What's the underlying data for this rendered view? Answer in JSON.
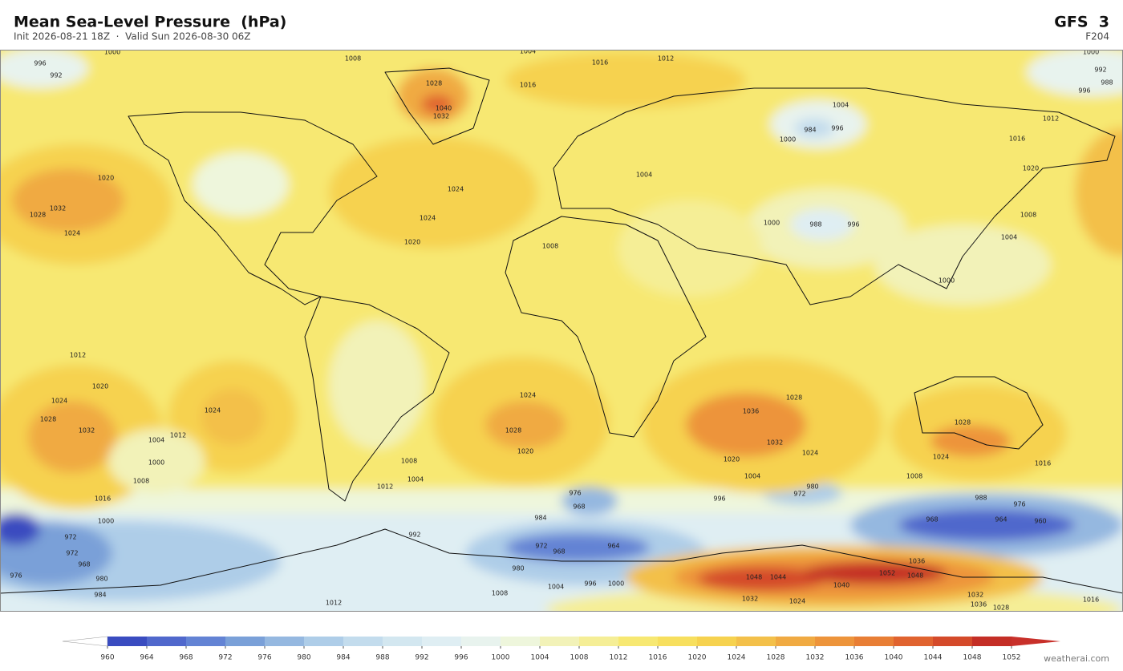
{
  "header": {
    "title": "Mean Sea-Level Pressure  (hPa)",
    "subtitle": "Init 2026-08-21 18Z  ·  Valid Sun 2026-08-30 06Z",
    "model": "GFS  3",
    "forecast_hour": "F204"
  },
  "colorbar": {
    "levels": [
      960,
      964,
      968,
      972,
      976,
      980,
      984,
      988,
      992,
      996,
      1000,
      1004,
      1008,
      1012,
      1016,
      1020,
      1024,
      1028,
      1032,
      1036,
      1040,
      1044,
      1048,
      1052
    ],
    "colors": [
      "#3a4cc0",
      "#5068cc",
      "#6383d4",
      "#7aa0d8",
      "#95b8e0",
      "#aecde8",
      "#c3dced",
      "#d3e7f0",
      "#dfeef3",
      "#e8f3ee",
      "#eef6dc",
      "#f2f2b8",
      "#f5ee96",
      "#f7e872",
      "#f7df5e",
      "#f6d24f",
      "#f3c04a",
      "#f0aa42",
      "#ed943b",
      "#e87e35",
      "#e0632f",
      "#d44a2a",
      "#c42e26"
    ],
    "under_color": "#ffffff",
    "over_color": "#c8302a"
  },
  "contour_labels": [
    1032,
    1024,
    1028,
    1020,
    1040,
    1032,
    1028,
    1024,
    1024,
    1020,
    1016,
    1008,
    1004,
    1016,
    1012,
    984,
    996,
    1000,
    1004,
    1008,
    1004,
    988,
    996,
    1000,
    1024,
    1028,
    1020,
    1036,
    1032,
    1028,
    1024,
    1020,
    1028,
    1024,
    1016,
    1032,
    1028,
    1024,
    1020,
    1012,
    1024,
    1012,
    1004,
    1000,
    1008,
    1016,
    1000,
    1008,
    1004,
    1012,
    976,
    968,
    964,
    968,
    972,
    992,
    984,
    980,
    996,
    1000,
    1004,
    1008,
    1012,
    972,
    980,
    988,
    976,
    964,
    960,
    968,
    1048,
    1044,
    1052,
    1048,
    1040,
    1036,
    1032,
    1024,
    1032,
    1036,
    1028,
    1016,
    996,
    992,
    1000,
    1000,
    992,
    988,
    996,
    972,
    972,
    968,
    976,
    980,
    984,
    1020,
    1016,
    1012,
    1008,
    1004,
    1000,
    1008,
    1004,
    996
  ],
  "watermark": "weatherai.com"
}
